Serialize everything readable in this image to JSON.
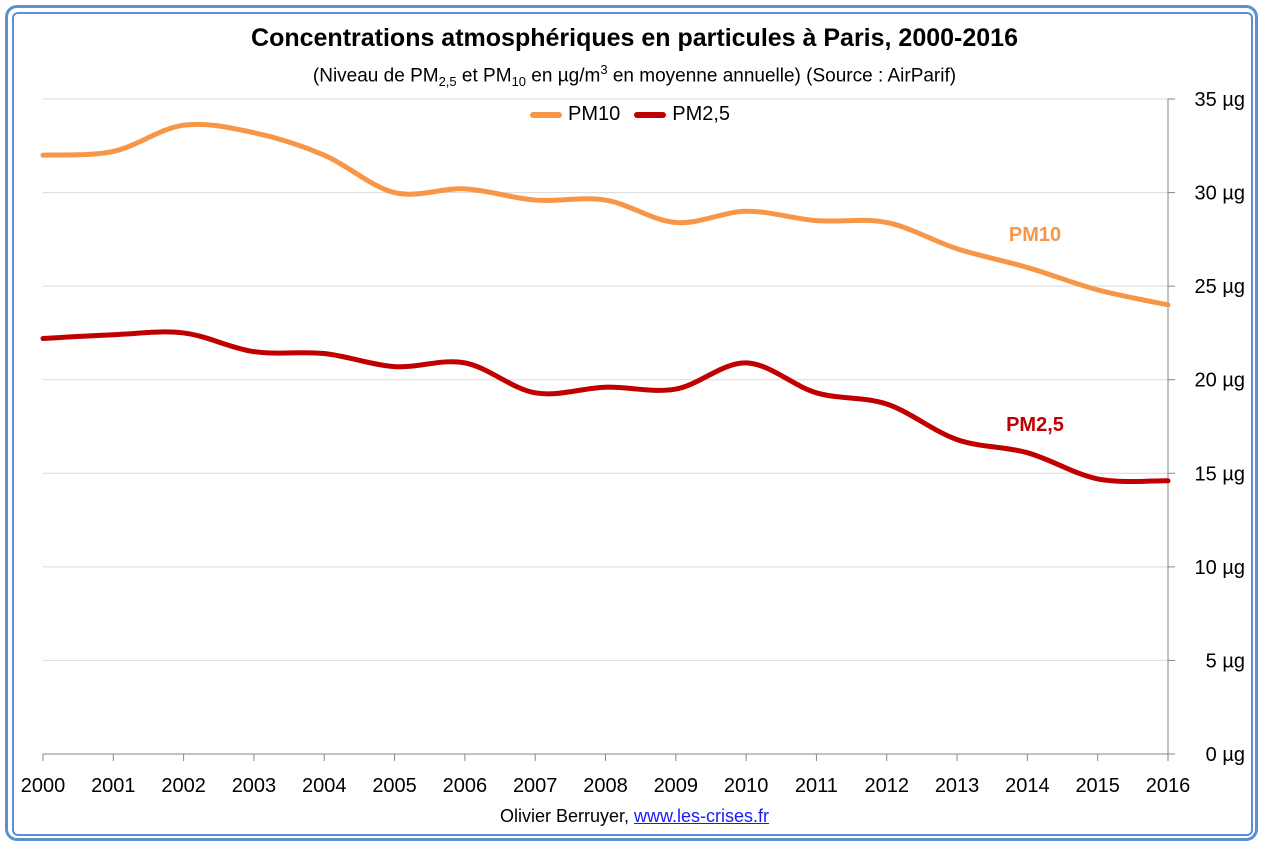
{
  "header": {
    "title": "Concentrations atmosphériques en particules à Paris, 2000-2016",
    "subtitle_prefix": "(Niveau de PM",
    "subtitle_sub1": "2,5",
    "subtitle_mid1": " et PM",
    "subtitle_sub2": "10",
    "subtitle_mid2": " en µg/m",
    "subtitle_sup": "3",
    "subtitle_suffix": " en moyenne annuelle) (Source : AirParif)"
  },
  "footer": {
    "author": "Olivier Berruyer, ",
    "link_text": "www.les-crises.fr"
  },
  "colors": {
    "pm10": "#f79646",
    "pm25": "#c00000",
    "grid": "#d9d9d9",
    "axis": "#868686",
    "frame": "#5b8fd0"
  },
  "chart_data": {
    "type": "line",
    "title": "Concentrations atmosphériques en particules à Paris, 2000-2016",
    "x": [
      2000,
      2001,
      2002,
      2003,
      2004,
      2005,
      2006,
      2007,
      2008,
      2009,
      2010,
      2011,
      2012,
      2013,
      2014,
      2015,
      2016
    ],
    "x_tick_labels": [
      "2000",
      "2001",
      "2002",
      "2003",
      "2004",
      "2005",
      "2006",
      "2007",
      "2008",
      "2009",
      "2010",
      "2011",
      "2012",
      "2013",
      "2014",
      "2015",
      "2016"
    ],
    "y_tick_labels": [
      "0 µg",
      "5 µg",
      "10 µg",
      "15 µg",
      "20 µg",
      "25 µg",
      "30 µg",
      "35 µg"
    ],
    "ylim": [
      0,
      35
    ],
    "y_ticks": [
      0,
      5,
      10,
      15,
      20,
      25,
      30,
      35
    ],
    "y_axis_side": "right",
    "grid": true,
    "legend_position": "top",
    "series": [
      {
        "name": "PM10",
        "label": "PM10",
        "color": "#f79646",
        "values": [
          32.0,
          32.2,
          33.6,
          33.2,
          32.0,
          30.0,
          30.2,
          29.6,
          29.6,
          28.4,
          29.0,
          28.5,
          28.4,
          27.0,
          26.0,
          24.8,
          24.0
        ]
      },
      {
        "name": "PM2,5",
        "label": "PM2,5",
        "color": "#c00000",
        "values": [
          22.2,
          22.4,
          22.5,
          21.5,
          21.4,
          20.7,
          20.9,
          19.3,
          19.6,
          19.5,
          20.9,
          19.3,
          18.7,
          16.8,
          16.1,
          14.7,
          14.6
        ]
      }
    ]
  }
}
